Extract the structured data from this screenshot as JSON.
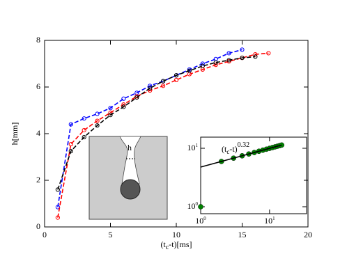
{
  "chart_data": [
    {
      "type": "line",
      "x_label": {
        "main": "(t",
        "sub": "c",
        "rest": "-t)[ms]"
      },
      "y_label": "h[mm]",
      "diagram_label": "h",
      "xlim": [
        0,
        20
      ],
      "xticks": [
        0,
        5,
        10,
        15,
        20
      ],
      "ylim": [
        0,
        8
      ],
      "yticks": [
        0,
        2,
        4,
        6,
        8
      ],
      "series": [
        {
          "color": "#0000ff",
          "x": [
            1,
            2,
            3,
            4,
            5,
            6,
            7,
            8,
            9,
            10,
            11,
            12,
            13,
            14,
            15
          ],
          "values": [
            0.85,
            4.4,
            4.65,
            4.85,
            5.1,
            5.5,
            5.75,
            6.05,
            6.25,
            6.5,
            6.75,
            7.0,
            7.2,
            7.45,
            7.6
          ]
        },
        {
          "color": "#ff0000",
          "x": [
            1,
            2,
            3,
            4,
            5,
            6,
            7,
            8,
            9,
            10,
            11,
            12,
            13,
            14,
            15,
            16,
            17
          ],
          "values": [
            0.4,
            3.55,
            4.15,
            4.55,
            4.9,
            5.25,
            5.6,
            5.85,
            6.05,
            6.3,
            6.55,
            6.75,
            6.95,
            7.1,
            7.25,
            7.4,
            7.45
          ]
        },
        {
          "color": "#000000",
          "x": [
            1,
            2,
            3,
            4,
            5,
            6,
            7,
            8,
            9,
            10,
            11,
            12,
            13,
            14,
            15,
            16
          ],
          "values": [
            1.6,
            3.25,
            3.85,
            4.35,
            4.8,
            5.15,
            5.55,
            5.95,
            6.25,
            6.5,
            6.7,
            6.9,
            7.05,
            7.15,
            7.25,
            7.3
          ]
        }
      ]
    },
    {
      "type": "scatter",
      "log_x": true,
      "log_y": true,
      "annotation": {
        "main": "(t",
        "sub": "c",
        "rest": "-t)",
        "sup": "0.32"
      },
      "xlim": [
        1,
        34.5
      ],
      "xticks": [
        {
          "value": 1,
          "label": "10",
          "power": "0"
        },
        {
          "value": 10,
          "label": "10",
          "power": "1"
        }
      ],
      "ylim": [
        0.76,
        15.5
      ],
      "yticks": [
        {
          "value": 1,
          "label": "10",
          "power": "0"
        },
        {
          "value": 10,
          "label": "10",
          "power": "1"
        }
      ],
      "series": [
        {
          "color": "#008000",
          "x": [
            1,
            2,
            3,
            4,
            5,
            6,
            7,
            8,
            9,
            10,
            11,
            12,
            13,
            14,
            15
          ],
          "values": [
            1.0,
            5.95,
            6.78,
            7.43,
            7.98,
            8.46,
            8.89,
            9.28,
            9.64,
            9.97,
            10.27,
            10.56,
            10.84,
            11.1,
            11.35
          ]
        },
        {
          "color": "#000000",
          "x": [
            1,
            15
          ],
          "values": [
            4.77,
            11.35
          ],
          "fit": true
        }
      ]
    }
  ]
}
